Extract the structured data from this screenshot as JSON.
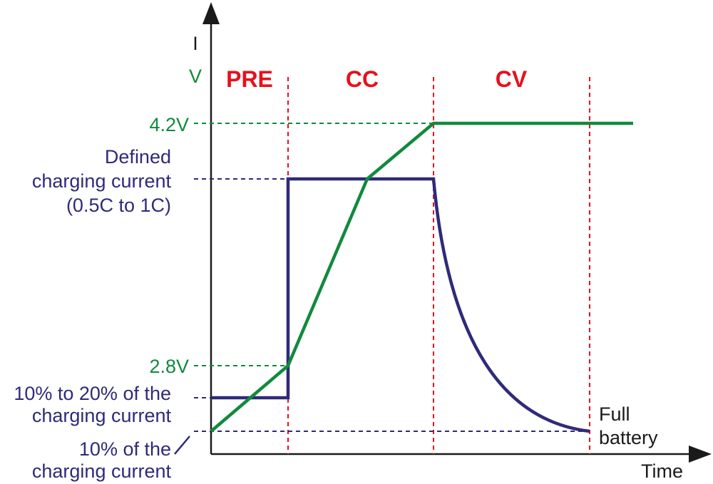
{
  "axes": {
    "y_labels": [
      "I",
      "V"
    ],
    "x_label": "Time"
  },
  "phases": [
    "PRE",
    "CC",
    "CV"
  ],
  "voltage_labels": [
    "4.2V",
    "2.8V"
  ],
  "current_labels": {
    "defined": [
      "Defined",
      "charging current",
      "(0.5C to 1C)"
    ],
    "pre": [
      "10% to 20% of the",
      "charging current"
    ],
    "termination": [
      "10% of the",
      "charging current"
    ]
  },
  "end_label": [
    "Full",
    "battery"
  ],
  "colors": {
    "voltage": "#118a3e",
    "current": "#2f2a7a",
    "phase_divider": "#e8101b",
    "axis": "#1a1a1a"
  }
}
